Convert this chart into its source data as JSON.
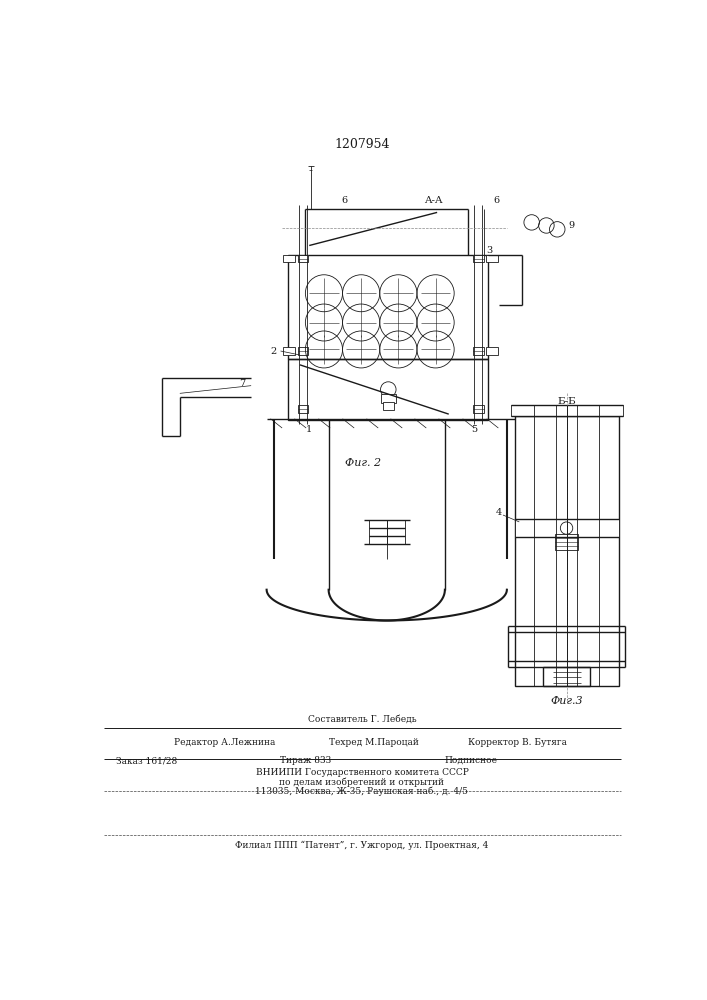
{
  "patent_number": "1207954",
  "fig2_label": "Фиг. 2",
  "fig3_label": "Фиг.3",
  "section_aa": "A-A",
  "section_bb": "Б-Б",
  "bg_color": "#ffffff",
  "line_color": "#1a1a1a",
  "footer_line1": "Составитель Г. Лебедь",
  "footer_line2a": "Редактор А.Лежнина",
  "footer_line2b": "Техред М.Пароцай",
  "footer_line2c": "Корректор В. Бутяга",
  "footer_line3a": "Заказ 161/28",
  "footer_line3b": "Тираж 833",
  "footer_line3c": "Подписное",
  "footer_line4": "ВНИИПИ Государственного комитета СССР",
  "footer_line5": "по делам изобретений и открытий",
  "footer_line6": "113035, Москва, Ж-35, Раушская наб., д. 4/5",
  "footer_line7": "Филиал ППП “Патент”, г. Ужгород, ул. Проектная, 4"
}
